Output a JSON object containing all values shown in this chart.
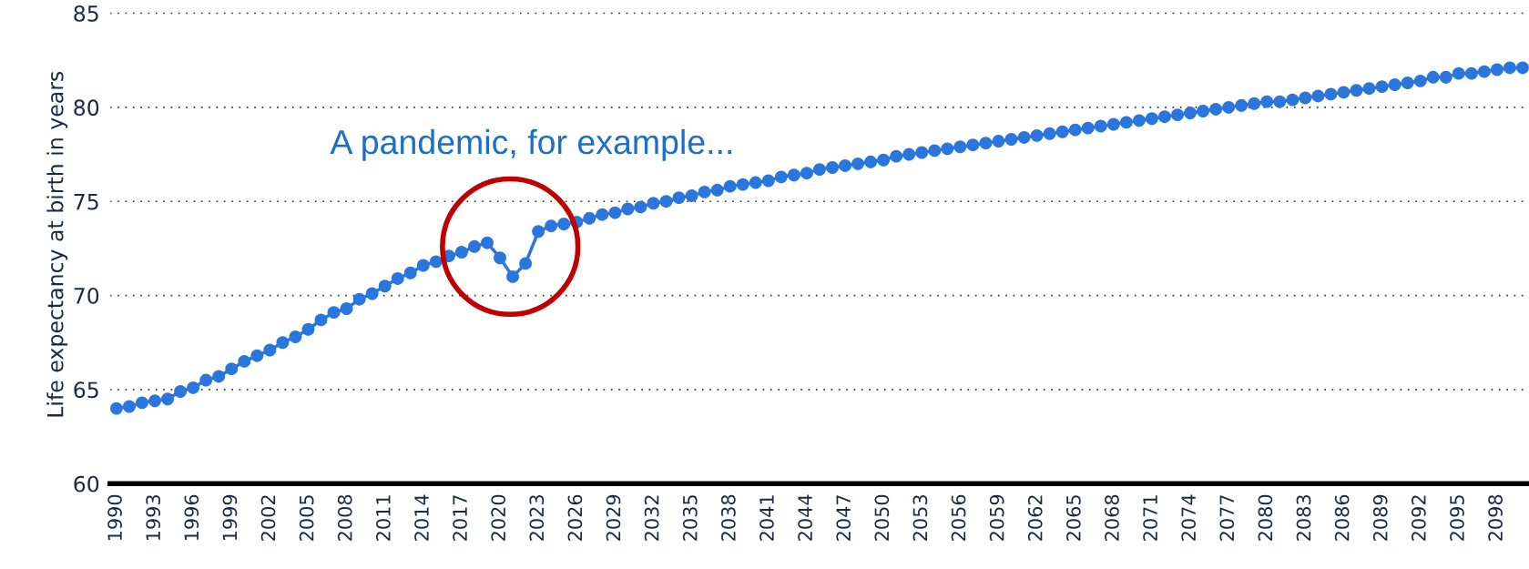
{
  "chart_data": {
    "type": "line",
    "ylabel": "Life expectancy at birth in years",
    "annotations": [
      "A pandemic, for example..."
    ],
    "x": [
      1990,
      1991,
      1992,
      1993,
      1994,
      1995,
      1996,
      1997,
      1998,
      1999,
      2000,
      2001,
      2002,
      2003,
      2004,
      2005,
      2006,
      2007,
      2008,
      2009,
      2010,
      2011,
      2012,
      2013,
      2014,
      2015,
      2016,
      2017,
      2018,
      2019,
      2020,
      2021,
      2022,
      2023,
      2024,
      2025,
      2026,
      2027,
      2028,
      2029,
      2030,
      2031,
      2032,
      2033,
      2034,
      2035,
      2036,
      2037,
      2038,
      2039,
      2040,
      2041,
      2042,
      2043,
      2044,
      2045,
      2046,
      2047,
      2048,
      2049,
      2050,
      2051,
      2052,
      2053,
      2054,
      2055,
      2056,
      2057,
      2058,
      2059,
      2060,
      2061,
      2062,
      2063,
      2064,
      2065,
      2066,
      2067,
      2068,
      2069,
      2070,
      2071,
      2072,
      2073,
      2074,
      2075,
      2076,
      2077,
      2078,
      2079,
      2080,
      2081,
      2082,
      2083,
      2084,
      2085,
      2086,
      2087,
      2088,
      2089,
      2090,
      2091,
      2092,
      2093,
      2094,
      2095,
      2096,
      2097,
      2098,
      2099,
      2100
    ],
    "series": [
      {
        "color": "#2b76dd",
        "values": [
          64.0,
          64.1,
          64.3,
          64.4,
          64.5,
          64.9,
          65.1,
          65.5,
          65.7,
          66.1,
          66.5,
          66.8,
          67.1,
          67.5,
          67.8,
          68.2,
          68.7,
          69.1,
          69.3,
          69.8,
          70.1,
          70.5,
          70.9,
          71.2,
          71.6,
          71.8,
          72.1,
          72.3,
          72.6,
          72.8,
          72.0,
          71.0,
          71.7,
          73.4,
          73.7,
          73.8,
          73.9,
          74.1,
          74.3,
          74.4,
          74.6,
          74.7,
          74.9,
          75.0,
          75.2,
          75.3,
          75.5,
          75.6,
          75.8,
          75.9,
          76.0,
          76.1,
          76.3,
          76.4,
          76.5,
          76.7,
          76.8,
          76.9,
          77.0,
          77.1,
          77.2,
          77.4,
          77.5,
          77.6,
          77.7,
          77.8,
          77.9,
          78.0,
          78.1,
          78.2,
          78.3,
          78.4,
          78.5,
          78.6,
          78.7,
          78.8,
          78.9,
          79.0,
          79.1,
          79.2,
          79.3,
          79.4,
          79.5,
          79.6,
          79.7,
          79.8,
          79.9,
          80.0,
          80.1,
          80.2,
          80.3,
          80.3,
          80.4,
          80.5,
          80.6,
          80.7,
          80.8,
          80.9,
          81.0,
          81.1,
          81.2,
          81.3,
          81.4,
          81.6,
          81.6,
          81.8,
          81.8,
          81.9,
          82.0,
          82.1,
          82.1
        ]
      }
    ],
    "xlim": [
      1989.5,
      2100.5
    ],
    "xticks": [
      1990,
      1993,
      1996,
      1999,
      2002,
      2005,
      2008,
      2011,
      2014,
      2017,
      2020,
      2023,
      2026,
      2029,
      2032,
      2035,
      2038,
      2041,
      2044,
      2047,
      2050,
      2053,
      2056,
      2059,
      2062,
      2065,
      2068,
      2071,
      2074,
      2077,
      2080,
      2083,
      2086,
      2089,
      2092,
      2095,
      2098
    ],
    "ylim": [
      60,
      85.4
    ],
    "yticks": [
      60,
      65,
      70,
      75,
      80,
      85
    ],
    "grid": "y",
    "marker": "circle",
    "line_style": "solid"
  }
}
